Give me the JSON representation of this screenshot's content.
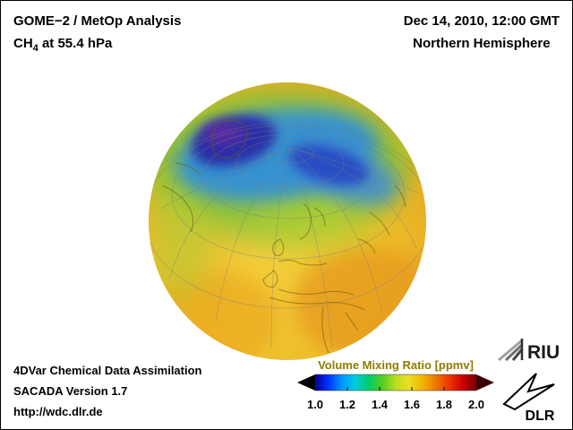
{
  "header": {
    "title": "GOME−2 / MetOp Analysis",
    "formula_prefix": "CH",
    "formula_sub": "4",
    "formula_suffix": " at 55.4 hPa",
    "date": "Dec 14, 2010, 12:00 GMT",
    "region": "Northern Hemisphere"
  },
  "footer": {
    "line1": "4DVar Chemical Data Assimilation",
    "line2": "SACADA Version 1.7",
    "line3": "http://wdc.dlr.de"
  },
  "colorbar": {
    "label": "Volume Mixing Ratio [ppmv]",
    "ticks": [
      "1.0",
      "1.2",
      "1.4",
      "1.6",
      "1.8",
      "2.0"
    ],
    "min": 1.0,
    "max": 2.0,
    "units": "ppmv",
    "label_color": "#8e7c00",
    "colors": [
      "#000099",
      "#0033ff",
      "#0099ff",
      "#00ccdd",
      "#00cc66",
      "#55cc22",
      "#bbdd22",
      "#eedd22",
      "#f0b400",
      "#ee7700",
      "#ee3300",
      "#cc0000",
      "#770000"
    ]
  },
  "logos": {
    "riu": "RIU",
    "dlr": "DLR"
  },
  "chart_data": {
    "type": "heatmap",
    "title": "GOME−2 / MetOp Analysis — CH4 at 55.4 hPa",
    "timestamp": "Dec 14, 2010, 12:00 GMT",
    "projection": "orthographic globe, Northern Hemisphere view",
    "variable": "CH4 volume mixing ratio",
    "units": "ppmv",
    "range": [
      1.0,
      2.0
    ],
    "colorbar_ticks": [
      1.0,
      1.2,
      1.4,
      1.6,
      1.8,
      2.0
    ],
    "features": [
      {
        "region": "Arctic polar vortex (Greenland / Arctic Ocean / toward Siberia)",
        "value_ppmv": "≈1.0–1.25",
        "color": "dark blue / purple core with blue band"
      },
      {
        "region": "vortex edge ring (northern Canada, Scandinavia, northern Russia)",
        "value_ppmv": "≈1.3–1.5",
        "color": "green transition"
      },
      {
        "region": "mid and low latitudes (Europe, Africa, Atlantic, Asia)",
        "value_ppmv": "≈1.55–1.7",
        "color": "yellow / orange background"
      }
    ]
  }
}
